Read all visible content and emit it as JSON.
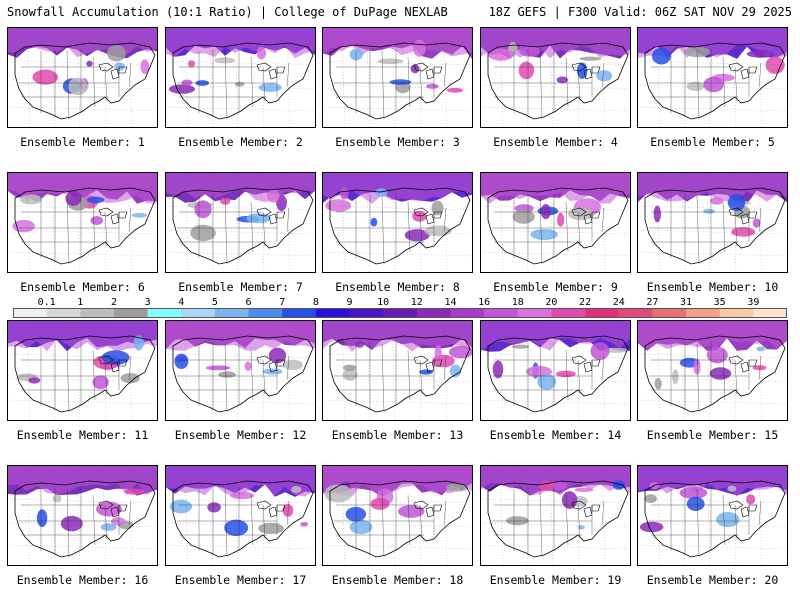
{
  "header": {
    "title": "Snowfall Accumulation (10:1 Ratio) | College of DuPage NEXLAB",
    "run_info": "18Z GEFS | F300 Valid: 06Z SAT NOV 29 2025"
  },
  "colorbar": {
    "labels": [
      "0.1",
      "1",
      "2",
      "3",
      "4",
      "5",
      "6",
      "7",
      "8",
      "9",
      "10",
      "12",
      "14",
      "16",
      "18",
      "20",
      "22",
      "24",
      "27",
      "31",
      "35",
      "39"
    ],
    "colors": [
      "#f0f0f0",
      "#d8d8d8",
      "#bdbdbd",
      "#9e9e9e",
      "#7fffff",
      "#a8d8f8",
      "#7ab4f0",
      "#4a8cf0",
      "#2450e8",
      "#2a10e0",
      "#4c14c8",
      "#6a1cb0",
      "#8a2ab8",
      "#a63cc8",
      "#c256d8",
      "#d870e0",
      "#e24ab0",
      "#e0307a",
      "#e04a78",
      "#e87070",
      "#f2a08a",
      "#f8c8a8",
      "#fce4d0"
    ]
  },
  "members": [
    {
      "label": "Ensemble Member: 1"
    },
    {
      "label": "Ensemble Member: 2"
    },
    {
      "label": "Ensemble Member: 3"
    },
    {
      "label": "Ensemble Member: 4"
    },
    {
      "label": "Ensemble Member: 5"
    },
    {
      "label": "Ensemble Member: 6"
    },
    {
      "label": "Ensemble Member: 7"
    },
    {
      "label": "Ensemble Member: 8"
    },
    {
      "label": "Ensemble Member: 9"
    },
    {
      "label": "Ensemble Member: 10"
    },
    {
      "label": "Ensemble Member: 11"
    },
    {
      "label": "Ensemble Member: 12"
    },
    {
      "label": "Ensemble Member: 13"
    },
    {
      "label": "Ensemble Member: 14"
    },
    {
      "label": "Ensemble Member: 15"
    },
    {
      "label": "Ensemble Member: 16"
    },
    {
      "label": "Ensemble Member: 17"
    },
    {
      "label": "Ensemble Member: 18"
    },
    {
      "label": "Ensemble Member: 19"
    },
    {
      "label": "Ensemble Member: 20"
    }
  ]
}
